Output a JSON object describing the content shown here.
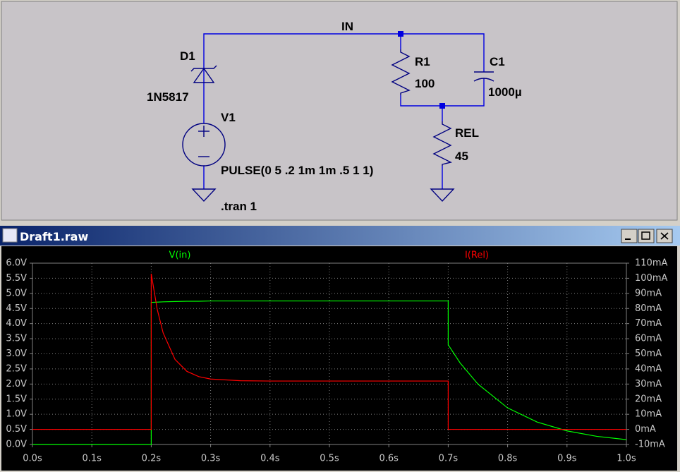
{
  "schematic": {
    "net_label": "IN",
    "labels": [
      "D1",
      "1N5817",
      "V1",
      "PULSE(0 5 .2 1m 1m .5 1 1)",
      ".tran 1",
      "R1",
      "100",
      "C1",
      "1000µ",
      "REL",
      "45"
    ]
  },
  "window": {
    "title": "Draft1.raw"
  },
  "chart_data": {
    "type": "line",
    "x": [
      0,
      0.2,
      0.2,
      0.21,
      0.22,
      0.24,
      0.26,
      0.28,
      0.3,
      0.35,
      0.4,
      0.5,
      0.6,
      0.7,
      0.7,
      0.72,
      0.75,
      0.8,
      0.85,
      0.9,
      0.95,
      1.0
    ],
    "series": [
      {
        "name": "V(in)",
        "color": "#00ff00",
        "values": [
          0,
          0,
          4.7,
          4.71,
          4.72,
          4.73,
          4.74,
          4.74,
          4.75,
          4.75,
          4.75,
          4.75,
          4.75,
          4.75,
          3.3,
          2.7,
          2.0,
          1.21,
          0.74,
          0.45,
          0.27,
          0.16
        ]
      },
      {
        "name": "I(Rel)",
        "color": "#ff0000",
        "axis": "y2",
        "values": [
          0,
          0,
          103,
          79.6,
          63.9,
          46.3,
          38.4,
          34.9,
          33.3,
          32.2,
          32,
          32,
          32,
          32,
          0,
          0,
          0,
          0,
          0,
          0,
          0,
          0
        ]
      }
    ],
    "xlim": [
      0,
      1.0
    ],
    "xticks": [
      {
        "value": 0,
        "label": "0.0s"
      },
      {
        "value": 0.1,
        "label": "0.1s"
      },
      {
        "value": 0.2,
        "label": "0.2s"
      },
      {
        "value": 0.3,
        "label": "0.3s"
      },
      {
        "value": 0.4,
        "label": "0.4s"
      },
      {
        "value": 0.5,
        "label": "0.5s"
      },
      {
        "value": 0.6,
        "label": "0.6s"
      },
      {
        "value": 0.7,
        "label": "0.7s"
      },
      {
        "value": 0.8,
        "label": "0.8s"
      },
      {
        "value": 0.9,
        "label": "0.9s"
      },
      {
        "value": 1.0,
        "label": "1.0s"
      }
    ],
    "ylim": [
      0,
      6
    ],
    "yticks": [
      {
        "value": 0,
        "label": "0.0V"
      },
      {
        "value": 0.5,
        "label": "0.5V"
      },
      {
        "value": 1,
        "label": "1.0V"
      },
      {
        "value": 1.5,
        "label": "1.5V"
      },
      {
        "value": 2,
        "label": "2.0V"
      },
      {
        "value": 2.5,
        "label": "2.5V"
      },
      {
        "value": 3,
        "label": "3.0V"
      },
      {
        "value": 3.5,
        "label": "3.5V"
      },
      {
        "value": 4,
        "label": "4.0V"
      },
      {
        "value": 4.5,
        "label": "4.5V"
      },
      {
        "value": 5,
        "label": "5.0V"
      },
      {
        "value": 5.5,
        "label": "5.5V"
      },
      {
        "value": 6,
        "label": "6.0V"
      }
    ],
    "y2lim": [
      -10,
      110
    ],
    "y2ticks": [
      {
        "value": -10,
        "label": "-10mA"
      },
      {
        "value": 0,
        "label": "0mA"
      },
      {
        "value": 10,
        "label": "10mA"
      },
      {
        "value": 20,
        "label": "20mA"
      },
      {
        "value": 30,
        "label": "30mA"
      },
      {
        "value": 40,
        "label": "40mA"
      },
      {
        "value": 50,
        "label": "50mA"
      },
      {
        "value": 60,
        "label": "60mA"
      },
      {
        "value": 70,
        "label": "70mA"
      },
      {
        "value": 80,
        "label": "80mA"
      },
      {
        "value": 90,
        "label": "90mA"
      },
      {
        "value": 100,
        "label": "100mA"
      },
      {
        "value": 110,
        "label": "110mA"
      }
    ],
    "grid": true
  }
}
